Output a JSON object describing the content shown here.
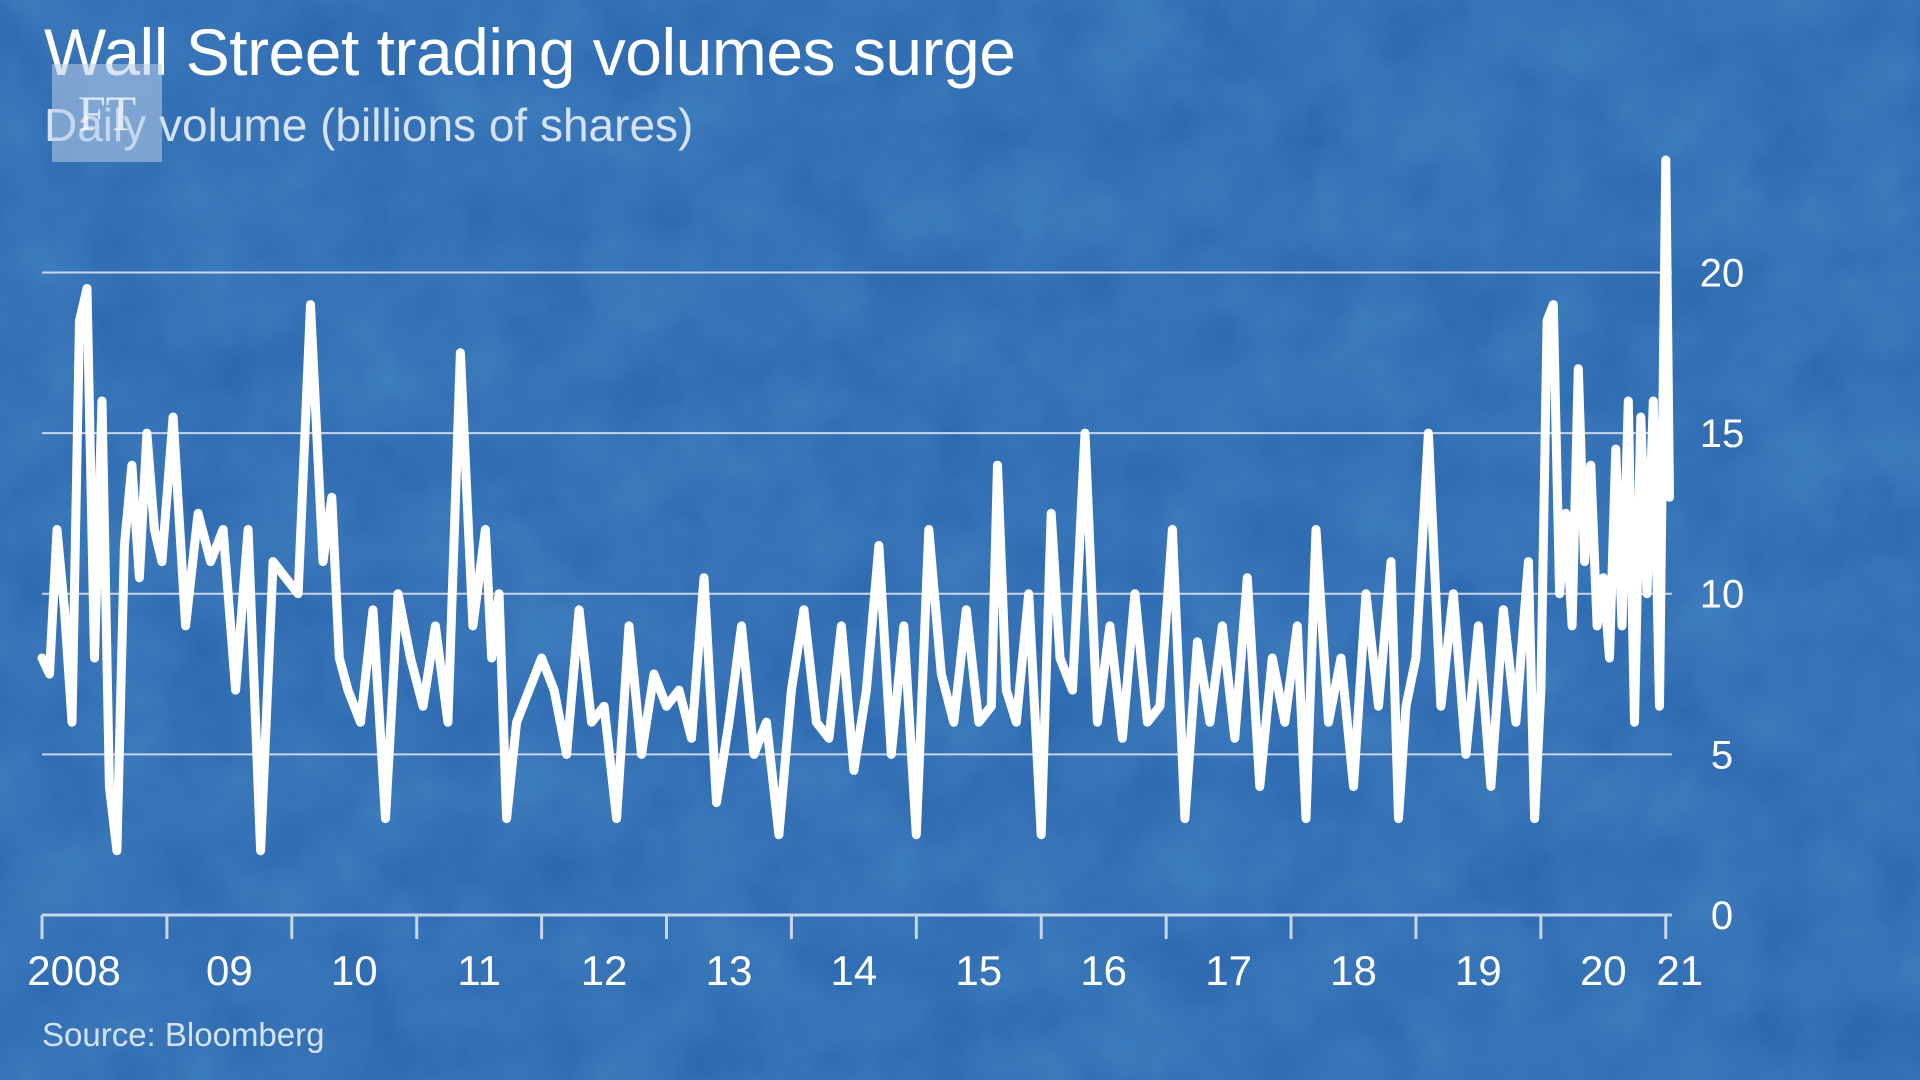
{
  "title": "Wall Street trading volumes surge",
  "subtitle": "Daily volume (billions of shares)",
  "logo_text": "FT",
  "source": "Source: Bloomberg",
  "colors": {
    "background": "#2a66b0",
    "line": "#ffffff",
    "gridline": "#c7d6ea",
    "text": "#ffffff"
  },
  "chart_data": {
    "type": "line",
    "title": "Wall Street trading volumes surge",
    "subtitle": "Daily volume (billions of shares)",
    "xlabel": "",
    "ylabel": "",
    "ylim": [
      0,
      23.5
    ],
    "xlim": [
      2008.0,
      2021.05
    ],
    "yticks": [
      0,
      5,
      10,
      15,
      20
    ],
    "ytick_labels": [
      "0",
      "5",
      "10",
      "15",
      "20"
    ],
    "y_axis_side": "right",
    "xticks": [
      2008,
      2009,
      2010,
      2011,
      2012,
      2013,
      2014,
      2015,
      2016,
      2017,
      2018,
      2019,
      2020,
      2021
    ],
    "xtick_labels": [
      "2008",
      "09",
      "10",
      "11",
      "12",
      "13",
      "14",
      "15",
      "16",
      "17",
      "18",
      "19",
      "20",
      "21"
    ],
    "grid": "horizontal",
    "legend": "none",
    "series": [
      {
        "x": [
          2008.0,
          2008.06,
          2008.12,
          2008.18,
          2008.24,
          2008.3,
          2008.36,
          2008.42,
          2008.48,
          2008.54,
          2008.6,
          2008.66,
          2008.72,
          2008.78,
          2008.84,
          2008.9,
          2008.96,
          2009.05,
          2009.15,
          2009.25,
          2009.35,
          2009.45,
          2009.55,
          2009.65,
          2009.75,
          2009.85,
          2009.95,
          2010.05,
          2010.15,
          2010.25,
          2010.32,
          2010.38,
          2010.45,
          2010.55,
          2010.65,
          2010.75,
          2010.85,
          2010.95,
          2011.05,
          2011.15,
          2011.25,
          2011.35,
          2011.45,
          2011.55,
          2011.6,
          2011.66,
          2011.72,
          2011.8,
          2011.9,
          2012.0,
          2012.1,
          2012.2,
          2012.3,
          2012.4,
          2012.5,
          2012.6,
          2012.7,
          2012.8,
          2012.9,
          2013.0,
          2013.1,
          2013.2,
          2013.3,
          2013.4,
          2013.5,
          2013.6,
          2013.7,
          2013.8,
          2013.9,
          2014.0,
          2014.1,
          2014.2,
          2014.3,
          2014.4,
          2014.5,
          2014.6,
          2014.7,
          2014.8,
          2014.9,
          2015.0,
          2015.1,
          2015.2,
          2015.3,
          2015.4,
          2015.5,
          2015.6,
          2015.65,
          2015.72,
          2015.8,
          2015.9,
          2016.0,
          2016.08,
          2016.15,
          2016.25,
          2016.35,
          2016.45,
          2016.55,
          2016.65,
          2016.75,
          2016.85,
          2016.95,
          2017.05,
          2017.15,
          2017.25,
          2017.35,
          2017.45,
          2017.55,
          2017.65,
          2017.75,
          2017.85,
          2017.95,
          2018.05,
          2018.12,
          2018.2,
          2018.3,
          2018.4,
          2018.5,
          2018.6,
          2018.7,
          2018.8,
          2018.86,
          2018.92,
          2019.0,
          2019.1,
          2019.2,
          2019.3,
          2019.4,
          2019.5,
          2019.6,
          2019.7,
          2019.8,
          2019.9,
          2019.95,
          2020.0,
          2020.05,
          2020.1,
          2020.15,
          2020.2,
          2020.25,
          2020.3,
          2020.35,
          2020.4,
          2020.45,
          2020.5,
          2020.55,
          2020.6,
          2020.65,
          2020.7,
          2020.75,
          2020.8,
          2020.85,
          2020.9,
          2020.95,
          2021.0,
          2021.03
        ],
        "y": [
          8.0,
          7.5,
          12.0,
          9.5,
          6.0,
          18.5,
          19.5,
          8.0,
          16.0,
          4.0,
          2.0,
          11.5,
          14.0,
          10.5,
          15.0,
          12.0,
          11.0,
          15.5,
          9.0,
          12.5,
          11.0,
          12.0,
          7.0,
          12.0,
          2.0,
          11.0,
          10.5,
          10.0,
          19.0,
          11.0,
          13.0,
          8.0,
          7.0,
          6.0,
          9.5,
          3.0,
          10.0,
          8.0,
          6.5,
          9.0,
          6.0,
          17.5,
          9.0,
          12.0,
          8.0,
          10.0,
          3.0,
          6.0,
          7.0,
          8.0,
          7.0,
          5.0,
          9.5,
          6.0,
          6.5,
          3.0,
          9.0,
          5.0,
          7.5,
          6.5,
          7.0,
          5.5,
          10.5,
          3.5,
          6.0,
          9.0,
          5.0,
          6.0,
          2.5,
          7.0,
          9.5,
          6.0,
          5.5,
          9.0,
          4.5,
          7.0,
          11.5,
          5.0,
          9.0,
          2.5,
          12.0,
          7.5,
          6.0,
          9.5,
          6.0,
          6.5,
          14.0,
          7.0,
          6.0,
          10.0,
          2.5,
          12.5,
          8.0,
          7.0,
          15.0,
          6.0,
          9.0,
          5.5,
          10.0,
          6.0,
          6.5,
          12.0,
          3.0,
          8.5,
          6.0,
          9.0,
          5.5,
          10.5,
          4.0,
          8.0,
          6.0,
          9.0,
          3.0,
          12.0,
          6.0,
          8.0,
          4.0,
          10.0,
          6.5,
          11.0,
          3.0,
          6.5,
          8.0,
          15.0,
          6.5,
          10.0,
          5.0,
          9.0,
          4.0,
          9.5,
          6.0,
          11.0,
          3.0,
          7.0,
          18.5,
          19.0,
          10.0,
          12.5,
          9.0,
          17.0,
          11.0,
          14.0,
          9.0,
          10.5,
          8.0,
          14.5,
          9.0,
          16.0,
          6.0,
          15.5,
          10.0,
          16.0,
          6.5,
          23.5,
          13.0
        ]
      }
    ]
  }
}
